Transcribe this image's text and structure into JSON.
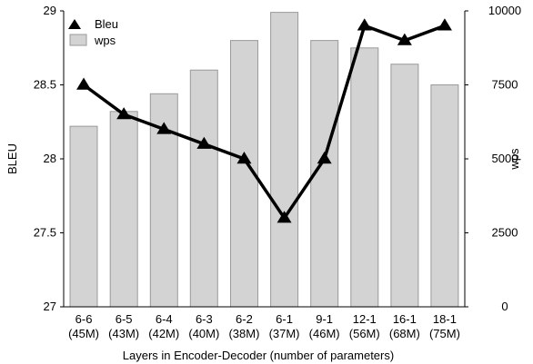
{
  "chart_data": {
    "type": "bar+line",
    "categories": [
      "6-6\n(45M)",
      "6-5\n(43M)",
      "6-4\n(42M)",
      "6-3\n(40M)",
      "6-2\n(38M)",
      "6-1\n(37M)",
      "9-1\n(46M)",
      "12-1\n(56M)",
      "16-1\n(68M)",
      "18-1\n(75M)"
    ],
    "series": [
      {
        "name": "Bleu",
        "type": "line",
        "axis": "left",
        "marker": "triangle",
        "color": "#000000",
        "values": [
          28.5,
          28.3,
          28.2,
          28.1,
          28.0,
          27.6,
          28.0,
          28.9,
          28.8,
          28.9
        ]
      },
      {
        "name": "wps",
        "type": "bar",
        "axis": "right",
        "color": "#d3d3d3",
        "values": [
          6100,
          6600,
          7200,
          8000,
          9000,
          9950,
          9000,
          8750,
          8200,
          7500
        ]
      }
    ],
    "xlabel": "Layers in Encoder-Decoder (number of parameters)",
    "ylabel": "BLEU",
    "y2label": "wps",
    "ylim": [
      27,
      29
    ],
    "y2lim": [
      0,
      10000
    ],
    "yticks": [
      "27",
      "27.5",
      "28",
      "28.5",
      "29"
    ],
    "y2ticks": [
      "0",
      "2500",
      "5000",
      "7500",
      "10000"
    ],
    "legend_position": "top-left",
    "grid": false
  }
}
